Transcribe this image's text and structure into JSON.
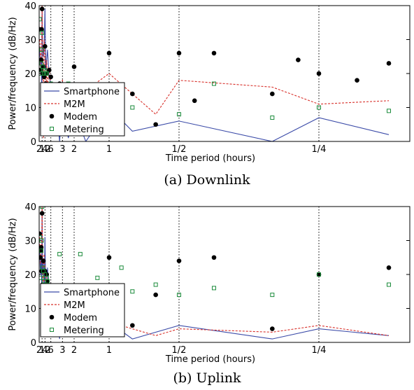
{
  "chart_data": [
    {
      "type": "scatter",
      "caption": "(a) Downlink",
      "xlabel": "Time period (hours)",
      "ylabel": "Power/frequency (dB/Hz)",
      "x_scale": "reciprocal (frequency axis; ticks labelled by period in hours)",
      "x_ticks": [
        24,
        12,
        6,
        3,
        2,
        1,
        0.5,
        0.25
      ],
      "x_tick_labels": [
        "24",
        "12",
        "6",
        "3",
        "2",
        "1",
        "1/2",
        "1/4"
      ],
      "ylim": [
        0,
        40
      ],
      "y_ticks": [
        0,
        10,
        20,
        30,
        40
      ],
      "grid": "dotted vertical lines at labelled periods",
      "legend": "left",
      "series": [
        {
          "name": "Smartphone",
          "style": "solid line",
          "color": "#3b4ba8",
          "x": [
            168,
            56,
            33.6,
            28,
            24,
            21,
            16.8,
            14,
            12,
            10.5,
            8.4,
            7,
            6,
            4.8,
            4,
            3.43,
            3,
            2.4,
            2,
            1.5,
            1,
            0.75,
            0.5,
            0.3,
            0.25,
            0.2
          ],
          "values": [
            28,
            22,
            24,
            12,
            39,
            29,
            25,
            27,
            39,
            21,
            27,
            19,
            17,
            4,
            10,
            0,
            11,
            1,
            9,
            0,
            10,
            3,
            6,
            0,
            7,
            2
          ]
        },
        {
          "name": "M2M",
          "style": "dashed line",
          "color": "#d8302a",
          "x": [
            168,
            84,
            56,
            42,
            33.6,
            28,
            24,
            21,
            18.7,
            16.8,
            14,
            12,
            10.5,
            9.3,
            8.4,
            7,
            6,
            4.8,
            4,
            3,
            2,
            1.5,
            1,
            0.6,
            0.5,
            0.3,
            0.25,
            0.2
          ],
          "values": [
            30,
            29,
            21,
            24,
            27,
            30,
            40,
            28,
            14,
            1,
            30,
            26,
            10,
            24,
            15,
            22,
            16,
            6,
            14,
            18,
            6,
            15,
            20,
            8,
            18,
            16,
            11,
            12
          ]
        },
        {
          "name": "Modem",
          "style": "filled circle markers",
          "color": "#000000",
          "x": [
            168,
            56,
            33.6,
            28,
            24,
            21,
            16.8,
            14,
            12,
            10.5,
            9.3,
            8.4,
            7,
            6,
            5.6,
            4.8,
            4,
            3.43,
            3,
            2.8,
            2.4,
            2,
            1.8,
            1.5,
            1.2,
            1,
            0.9,
            0.75,
            0.6,
            0.5,
            0.45,
            0.4,
            0.3,
            0.27,
            0.25,
            0.22,
            0.2
          ],
          "values": [
            33,
            21,
            24,
            33,
            39,
            20,
            22,
            19,
            28,
            17,
            20,
            8,
            21,
            19,
            3,
            12,
            11,
            17,
            3,
            14,
            12,
            22,
            7,
            4,
            14,
            26,
            10,
            14,
            5,
            26,
            12,
            26,
            14,
            24,
            20,
            18,
            23
          ]
        },
        {
          "name": "Metering",
          "style": "open square markers",
          "color": "#1a8a3a",
          "x": [
            168,
            56,
            33.6,
            28,
            24,
            21,
            16.8,
            14,
            12,
            10.5,
            9.3,
            8.4,
            7,
            6,
            4.8,
            4,
            3,
            2.4,
            2,
            1.5,
            1,
            0.75,
            0.5,
            0.4,
            0.3,
            0.25,
            0.2
          ],
          "values": [
            36,
            20,
            23,
            27,
            32,
            22,
            21,
            20,
            21,
            20,
            20,
            14,
            14,
            17,
            10,
            11,
            5,
            17,
            10,
            12,
            10,
            10,
            8,
            17,
            7,
            10,
            9
          ]
        }
      ]
    },
    {
      "type": "scatter",
      "caption": "(b) Uplink",
      "xlabel": "Time period (hours)",
      "ylabel": "Power/frequency (dB/Hz)",
      "x_scale": "reciprocal (frequency axis; ticks labelled by period in hours)",
      "x_ticks": [
        24,
        12,
        6,
        3,
        2,
        1,
        0.5,
        0.25
      ],
      "x_tick_labels": [
        "24",
        "12",
        "6",
        "3",
        "2",
        "1",
        "1/2",
        "1/4"
      ],
      "ylim": [
        0,
        40
      ],
      "y_ticks": [
        0,
        10,
        20,
        30,
        40
      ],
      "grid": "dotted vertical lines at labelled periods",
      "legend": "left",
      "series": [
        {
          "name": "Smartphone",
          "style": "solid line",
          "color": "#3b4ba8",
          "x": [
            168,
            56,
            33.6,
            28,
            24,
            21,
            16.8,
            14,
            12,
            10.5,
            8.4,
            7,
            6,
            4.8,
            4,
            3.43,
            3,
            2.4,
            2,
            1.5,
            1,
            0.75,
            0.5,
            0.3,
            0.25,
            0.2
          ],
          "values": [
            29,
            20,
            25,
            16,
            40,
            21,
            24,
            14,
            31,
            14,
            22,
            13,
            15,
            2,
            11,
            1,
            12,
            2,
            10,
            2,
            6,
            1,
            5,
            1,
            4,
            2
          ]
        },
        {
          "name": "M2M",
          "style": "dashed line",
          "color": "#d8302a",
          "x": [
            168,
            84,
            56,
            42,
            33.6,
            28,
            24,
            21,
            18.7,
            16.8,
            14,
            12,
            10.5,
            9.3,
            8.4,
            7,
            6,
            4.8,
            4,
            3,
            2,
            1.5,
            1,
            0.6,
            0.5,
            0.3,
            0.25,
            0.2
          ],
          "values": [
            32,
            28,
            23,
            26,
            27,
            29,
            41,
            27,
            17,
            10,
            26,
            22,
            8,
            20,
            14,
            11,
            8,
            3,
            7,
            6,
            5,
            3,
            6,
            2,
            4,
            3,
            5,
            2
          ]
        },
        {
          "name": "Modem",
          "style": "filled circle markers",
          "color": "#000000",
          "x": [
            168,
            84,
            56,
            42,
            33.6,
            28,
            24,
            21,
            16.8,
            15.3,
            14,
            12,
            10.5,
            9.3,
            8.4,
            7,
            6,
            4.8,
            4,
            3.43,
            3,
            2.4,
            2,
            1.5,
            1.2,
            1,
            0.75,
            0.6,
            0.5,
            0.4,
            0.3,
            0.25,
            0.2
          ],
          "values": [
            32,
            27,
            25,
            27,
            28,
            21,
            38,
            17,
            24,
            5,
            13,
            21,
            8,
            20,
            18,
            12,
            9,
            5,
            12,
            3,
            8,
            5,
            7,
            4,
            6,
            25,
            5,
            14,
            24,
            25,
            4,
            20,
            22
          ]
        },
        {
          "name": "Metering",
          "style": "open square markers",
          "color": "#1a8a3a",
          "x": [
            168,
            56,
            33.6,
            28,
            24,
            21,
            16.8,
            14,
            12,
            10.5,
            9.3,
            8.4,
            7,
            6,
            4.8,
            4,
            3.43,
            3,
            2.4,
            2,
            1.7,
            1.5,
            1.2,
            1,
            0.85,
            0.75,
            0.6,
            0.5,
            0.4,
            0.3,
            0.25,
            0.2
          ],
          "values": [
            31,
            19,
            27,
            30,
            40,
            22,
            21,
            18,
            20,
            17,
            19,
            18,
            14,
            13,
            11,
            13,
            26,
            9,
            15,
            16,
            26,
            12,
            19,
            13,
            22,
            15,
            17,
            14,
            16,
            14,
            20,
            17
          ]
        }
      ]
    }
  ]
}
